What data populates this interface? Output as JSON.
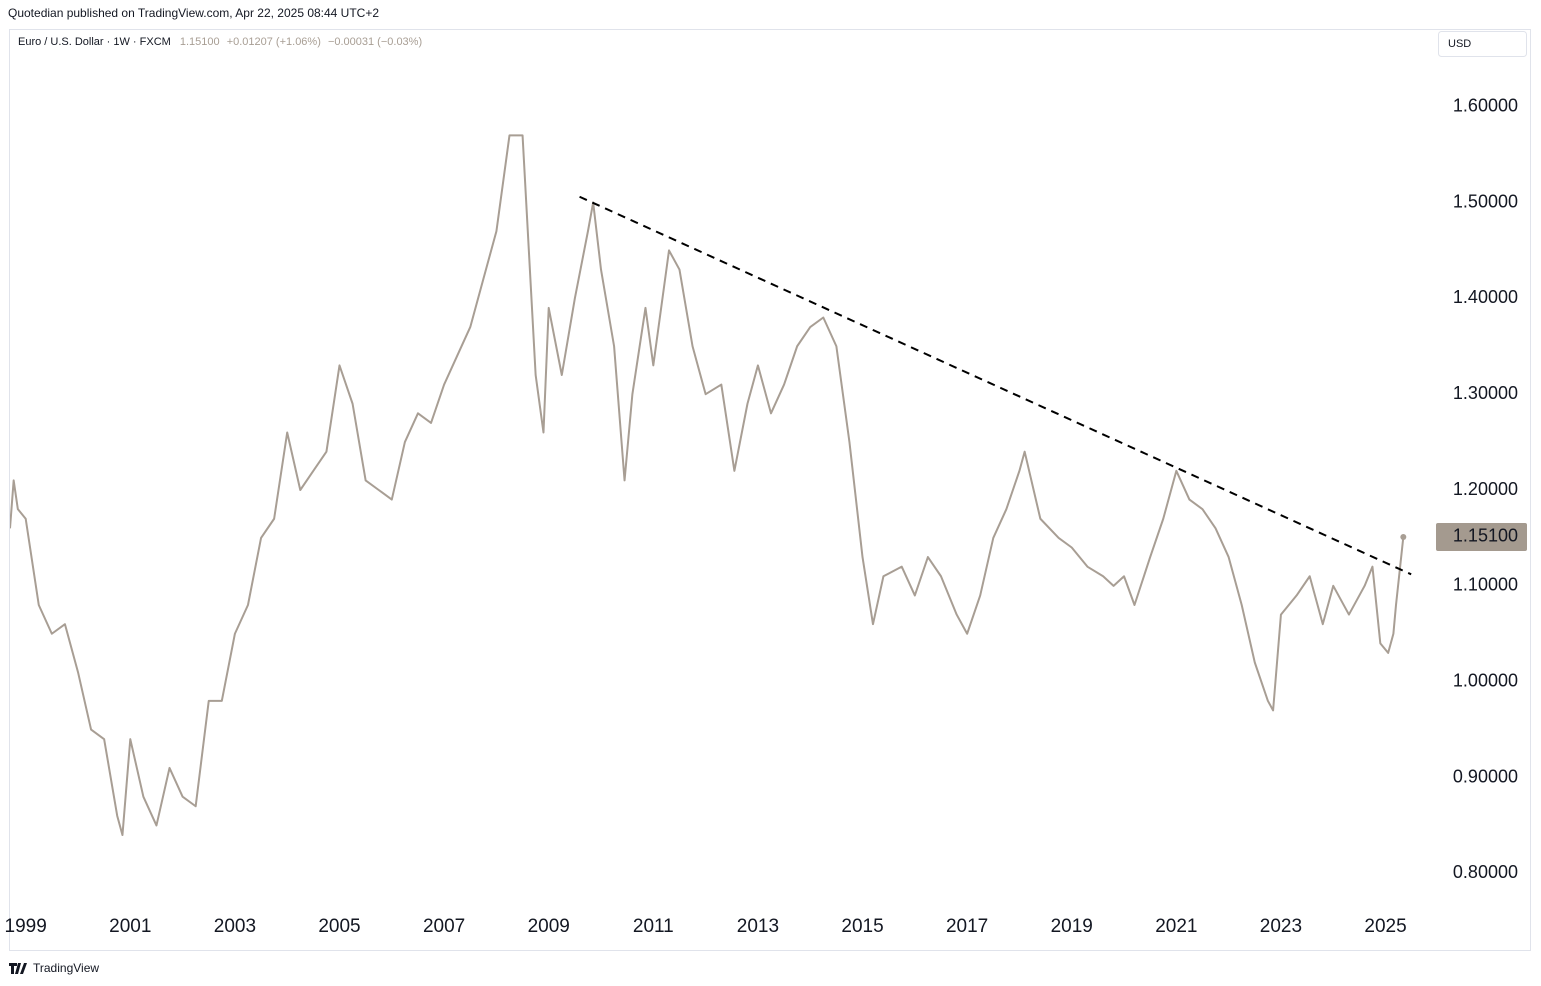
{
  "header": {
    "attribution": "Quotedian published on TradingView.com, Apr 22, 2025 08:44 UTC+2"
  },
  "legend": {
    "symbol": "Euro / U.S. Dollar · 1W · FXCM",
    "price": "1.15100",
    "change": "+0.01207 (+1.06%)",
    "extended": "−0.00031 (−0.03%)"
  },
  "currency_button": "USD",
  "footer": {
    "brand": "TradingView"
  },
  "chart_data": {
    "type": "line",
    "x": [
      1998.7,
      1998.77,
      1998.85,
      1999.0,
      1999.25,
      1999.5,
      1999.75,
      2000.0,
      2000.25,
      2000.5,
      2000.75,
      2000.85,
      2001.0,
      2001.25,
      2001.5,
      2001.75,
      2002.0,
      2002.25,
      2002.5,
      2002.75,
      2003.0,
      2003.25,
      2003.5,
      2003.75,
      2004.0,
      2004.25,
      2004.5,
      2004.75,
      2005.0,
      2005.25,
      2005.5,
      2005.75,
      2006.0,
      2006.25,
      2006.5,
      2006.75,
      2007.0,
      2007.25,
      2007.5,
      2007.75,
      2008.0,
      2008.25,
      2008.5,
      2008.75,
      2008.9,
      2009.0,
      2009.25,
      2009.5,
      2009.75,
      2009.85,
      2010.0,
      2010.25,
      2010.45,
      2010.6,
      2010.85,
      2011.0,
      2011.3,
      2011.5,
      2011.75,
      2012.0,
      2012.3,
      2012.55,
      2012.8,
      2013.0,
      2013.25,
      2013.5,
      2013.75,
      2014.0,
      2014.25,
      2014.5,
      2014.75,
      2015.0,
      2015.2,
      2015.4,
      2015.75,
      2016.0,
      2016.25,
      2016.5,
      2016.8,
      2017.0,
      2017.25,
      2017.5,
      2017.75,
      2018.0,
      2018.1,
      2018.4,
      2018.75,
      2019.0,
      2019.3,
      2019.6,
      2019.8,
      2020.0,
      2020.2,
      2020.5,
      2020.75,
      2021.0,
      2021.25,
      2021.5,
      2021.75,
      2022.0,
      2022.25,
      2022.5,
      2022.75,
      2022.85,
      2023.0,
      2023.3,
      2023.55,
      2023.8,
      2024.0,
      2024.3,
      2024.6,
      2024.75,
      2024.9,
      2025.05,
      2025.15,
      2025.2,
      2025.34
    ],
    "series": [
      {
        "name": "Euro / U.S. Dollar",
        "color": "#a89e94",
        "values": [
          1.16,
          1.21,
          1.18,
          1.17,
          1.08,
          1.05,
          1.06,
          1.01,
          0.95,
          0.94,
          0.86,
          0.84,
          0.94,
          0.88,
          0.85,
          0.91,
          0.88,
          0.87,
          0.98,
          0.98,
          1.05,
          1.08,
          1.15,
          1.17,
          1.26,
          1.2,
          1.22,
          1.24,
          1.33,
          1.29,
          1.21,
          1.2,
          1.19,
          1.25,
          1.28,
          1.27,
          1.31,
          1.34,
          1.37,
          1.42,
          1.47,
          1.57,
          1.57,
          1.32,
          1.26,
          1.39,
          1.32,
          1.4,
          1.47,
          1.5,
          1.43,
          1.35,
          1.21,
          1.3,
          1.39,
          1.33,
          1.45,
          1.43,
          1.35,
          1.3,
          1.31,
          1.22,
          1.29,
          1.33,
          1.28,
          1.31,
          1.35,
          1.37,
          1.38,
          1.35,
          1.25,
          1.13,
          1.06,
          1.11,
          1.12,
          1.09,
          1.13,
          1.11,
          1.07,
          1.05,
          1.09,
          1.15,
          1.18,
          1.22,
          1.24,
          1.17,
          1.15,
          1.14,
          1.12,
          1.11,
          1.1,
          1.11,
          1.08,
          1.13,
          1.17,
          1.22,
          1.19,
          1.18,
          1.16,
          1.13,
          1.08,
          1.02,
          0.98,
          0.97,
          1.07,
          1.09,
          1.11,
          1.06,
          1.1,
          1.07,
          1.1,
          1.12,
          1.04,
          1.03,
          1.05,
          1.08,
          1.151
        ]
      }
    ],
    "trendline": {
      "x": [
        2009.59,
        2025.49
      ],
      "values": [
        1.506,
        1.112
      ],
      "color": "#000000"
    },
    "last_price": {
      "value": 1.151,
      "label": "1.15100",
      "color": "#a49a8f"
    },
    "xlim": [
      1998.7,
      2025.85
    ],
    "ylim": [
      0.72,
      1.68
    ],
    "xticks": [
      1999,
      2001,
      2003,
      2005,
      2007,
      2009,
      2011,
      2013,
      2015,
      2017,
      2019,
      2021,
      2023,
      2025
    ],
    "yticks": [
      {
        "value": 0.8,
        "label": "0.80000"
      },
      {
        "value": 0.9,
        "label": "0.90000"
      },
      {
        "value": 1.0,
        "label": "1.00000"
      },
      {
        "value": 1.1,
        "label": "1.10000"
      },
      {
        "value": 1.2,
        "label": "1.20000"
      },
      {
        "value": 1.3,
        "label": "1.30000"
      },
      {
        "value": 1.4,
        "label": "1.40000"
      },
      {
        "value": 1.5,
        "label": "1.50000"
      },
      {
        "value": 1.6,
        "label": "1.60000"
      }
    ]
  }
}
